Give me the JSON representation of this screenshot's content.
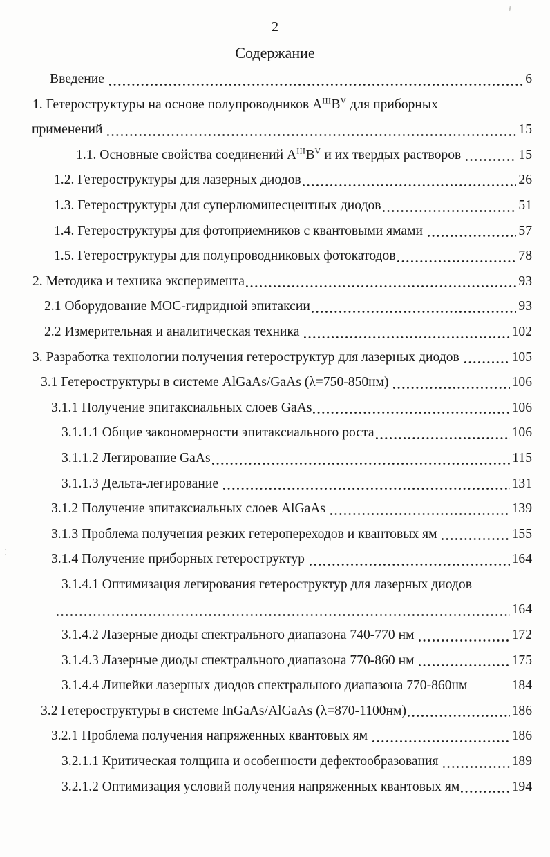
{
  "page": {
    "number": "2",
    "title": "Содержание"
  },
  "toc": {
    "rows": [
      {
        "text": "Введение ",
        "page": "6"
      },
      {
        "parts": [
          {
            "text": "1. Гетероструктуры на основе полупроводников A"
          },
          {
            "text": "III",
            "sup": true
          },
          {
            "text": "B"
          },
          {
            "text": "V",
            "sup": true
          },
          {
            "text": " для приборных"
          }
        ],
        "page": ""
      },
      {
        "text": "применений ",
        "page": "15"
      },
      {
        "parts": [
          {
            "text": "1.1. Основные свойства соединений A"
          },
          {
            "text": "III",
            "sup": true
          },
          {
            "text": "B"
          },
          {
            "text": "V",
            "sup": true
          },
          {
            "text": " и их твердых растворов "
          }
        ],
        "page": "15"
      },
      {
        "text": "1.2. Гетероструктуры для лазерных диодов",
        "page": "26"
      },
      {
        "text": "1.3. Гетероструктуры для суперлюминесцентных диодов",
        "page": "51"
      },
      {
        "text": "1.4. Гетероструктуры для фотоприемников с квантовыми ямами ",
        "page": "57"
      },
      {
        "text": "1.5. Гетероструктуры для полупроводниковых фотокатодов",
        "page": "78"
      },
      {
        "text": "2. Методика и техника эксперимента",
        "page": "93"
      },
      {
        "text": "2.1 Оборудование МОС-гидридной эпитаксии",
        "page": "93"
      },
      {
        "text": "2.2 Измерительная и аналитическая техника ",
        "page": "102"
      },
      {
        "text": "3. Разработка технологии получения гетероструктур для лазерных диодов ",
        "page": "105"
      },
      {
        "text": "3.1 Гетероструктуры в системе AlGaAs/GaAs (λ=750-850нм) ",
        "page": "106"
      },
      {
        "text": "3.1.1 Получение эпитаксиальных слоев GaAs",
        "page": "106"
      },
      {
        "text": "3.1.1.1 Общие закономерности эпитаксиального роста",
        "page": "106"
      },
      {
        "text": "3.1.1.2 Легирование GaAs",
        "page": "115"
      },
      {
        "text": "3.1.1.3 Дельта-легирование ",
        "page": "131"
      },
      {
        "text": "3.1.2 Получение эпитаксиальных слоев AlGaAs ",
        "page": "139"
      },
      {
        "text": "3.1.3 Проблема получения резких гетеропереходов и квантовых ям ",
        "page": "155"
      },
      {
        "text": "3.1.4 Получение приборных гетероструктур ",
        "page": "164"
      },
      {
        "text": "3.1.4.1 Оптимизация легирования гетероструктур для лазерных диодов",
        "page": ""
      },
      {
        "text": "",
        "page": "164"
      },
      {
        "text": "3.1.4.2 Лазерные диоды спектрального диапазона 740-770 нм ",
        "page": "172"
      },
      {
        "text": "3.1.4.3 Лазерные диоды спектрального диапазона 770-860 нм ",
        "page": "175"
      },
      {
        "text": "3.1.4.4 Линейки лазерных диодов спектрального диапазона 770-860нм",
        "page": "184"
      },
      {
        "text": "3.2 Гетероструктуры в системе InGaAs/AlGaAs (λ=870-1100нм)",
        "page": "186"
      },
      {
        "text": "3.2.1 Проблема получения напряженных квантовых ям ",
        "page": "186"
      },
      {
        "text": "3.2.1.1 Критическая толщина и особенности дефектообразования ",
        "page": "189"
      },
      {
        "text": "3.2.1.2 Оптимизация условий получения напряженных квантовых ям",
        "page": "194"
      }
    ]
  }
}
